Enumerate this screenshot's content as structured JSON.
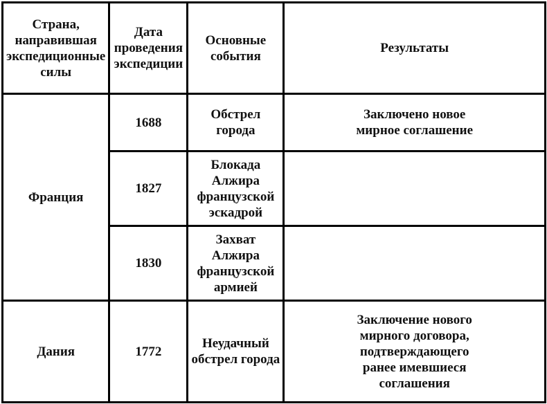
{
  "table": {
    "headers": [
      "Страна,\nнаправившая\nэкспедиционные\nсилы",
      "Дата\nпроведения\nэкспедиции",
      "Основные\nсобытия",
      "Результаты"
    ],
    "groups": [
      {
        "country": "Франция",
        "rows": [
          {
            "date": "1688",
            "events": "Обстрел города",
            "result": "Заключено новое\nмирное соглашение"
          },
          {
            "date": "1827",
            "events": "Блокада Алжира\nфранцузской\nэскадрой",
            "result": ""
          },
          {
            "date": "1830",
            "events": "Захват Алжира\nфранцузской\nармией",
            "result": ""
          }
        ]
      },
      {
        "country": "Дания",
        "rows": [
          {
            "date": "1772",
            "events": "Неудачный\nобстрел города",
            "result": "Заключение нового\nмирного договора,\nподтверждающего\nранее имевшиеся\nсоглашения"
          }
        ]
      }
    ]
  }
}
